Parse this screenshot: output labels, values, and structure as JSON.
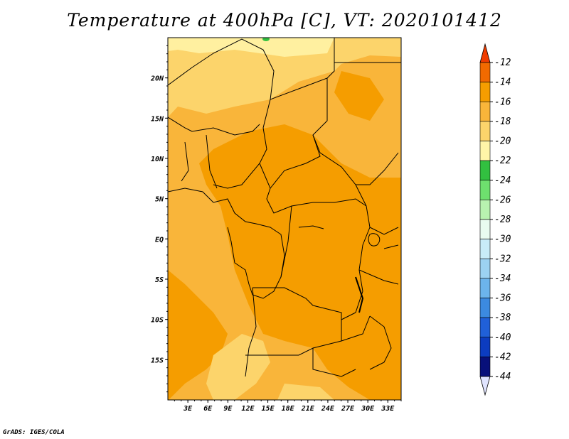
{
  "title": "Temperature at 400hPa [C], VT: 2020101412",
  "credit": "GrADS: IGES/COLA",
  "map": {
    "lon_labels": [
      "3E",
      "6E",
      "9E",
      "12E",
      "15E",
      "18E",
      "21E",
      "24E",
      "27E",
      "30E",
      "33E"
    ],
    "lat_labels": [
      "20N",
      "15N",
      "10N",
      "5N",
      "EQ",
      "5S",
      "10S",
      "15S"
    ],
    "lon_range": [
      0,
      35
    ],
    "lat_range": [
      -20,
      25
    ]
  },
  "colorbar": {
    "levels": [
      "-12",
      "-14",
      "-16",
      "-18",
      "-20",
      "-22",
      "-24",
      "-26",
      "-28",
      "-30",
      "-32",
      "-34",
      "-36",
      "-38",
      "-40",
      "-42",
      "-44"
    ],
    "colors": [
      "#ff7722",
      "#f26a00",
      "#f59d00",
      "#f9b53a",
      "#fcd46b",
      "#fff5a8",
      "#32c040",
      "#6ee06e",
      "#b8f2b0",
      "#e8fcf0",
      "#c8ecf8",
      "#9cd2f2",
      "#6cb4ec",
      "#3c8ae0",
      "#2060d8",
      "#0c3cc0",
      "#08107a"
    ],
    "top_arrow_color": "#f03c00",
    "bottom_arrow_color": "#e0e4ff"
  }
}
